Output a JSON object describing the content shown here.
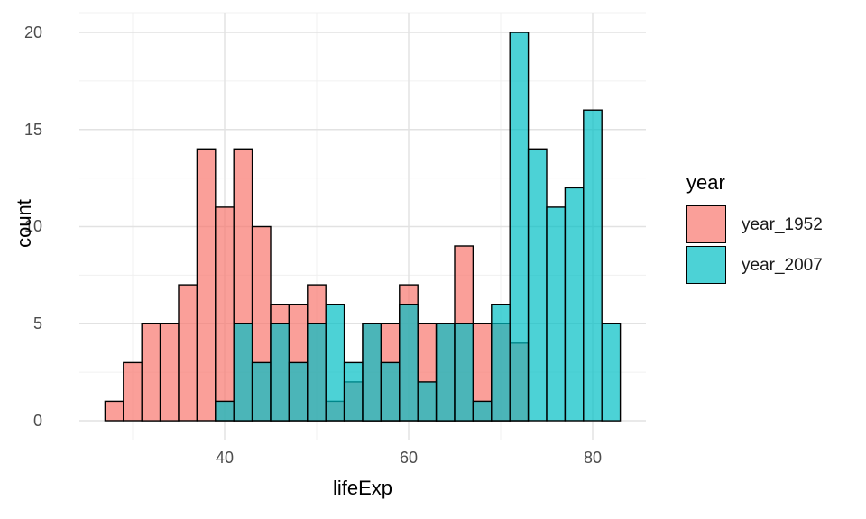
{
  "chart_data": {
    "type": "histogram",
    "title": "",
    "xlabel": "lifeExp",
    "ylabel": "count",
    "grid": "major+minor",
    "bin_width": 2,
    "bin_edges": [
      27,
      29,
      31,
      33,
      35,
      37,
      39,
      41,
      43,
      45,
      47,
      49,
      51,
      53,
      55,
      57,
      59,
      61,
      63,
      65,
      67,
      69,
      71,
      73,
      75,
      77,
      79,
      81,
      83
    ],
    "series": [
      {
        "name": "year_1952",
        "color": "#F8766D",
        "counts": [
          1,
          3,
          5,
          5,
          7,
          14,
          11,
          14,
          10,
          6,
          6,
          7,
          1,
          2,
          5,
          5,
          7,
          5,
          5,
          9,
          5,
          5,
          4,
          0,
          0,
          0,
          0,
          0
        ]
      },
      {
        "name": "year_2007",
        "color": "#00BFC4",
        "counts": [
          0,
          0,
          0,
          0,
          0,
          0,
          1,
          5,
          3,
          5,
          3,
          5,
          6,
          3,
          5,
          3,
          6,
          2,
          5,
          5,
          1,
          6,
          20,
          14,
          11,
          12,
          16,
          5
        ]
      }
    ],
    "fill_opacity": 0.7,
    "bar_stroke": "#000000",
    "x_ticks": [
      40,
      60,
      80
    ],
    "x_tick_labels": [
      "40",
      "60",
      "80"
    ],
    "x_minor_ticks": [
      30,
      50,
      70
    ],
    "y_ticks": [
      0,
      5,
      10,
      15,
      20
    ],
    "y_tick_labels": [
      "0",
      "5",
      "10",
      "15",
      "20"
    ],
    "y_minor_ticks": [
      2.5,
      7.5,
      12.5,
      17.5
    ],
    "xlim": [
      24.2,
      85.8
    ],
    "ylim": [
      -1,
      21
    ],
    "legend": {
      "title": "year",
      "position": "right",
      "entries": [
        {
          "label": "year_1952",
          "color": "#F8766D"
        },
        {
          "label": "year_2007",
          "color": "#00BFC4"
        }
      ]
    },
    "colors": {
      "background": "#FFFFFF",
      "grid_major": "#E2E2E2",
      "grid_minor": "#F0F0F0",
      "axis_text": "#4D4D4D",
      "title_text": "#000000"
    }
  }
}
